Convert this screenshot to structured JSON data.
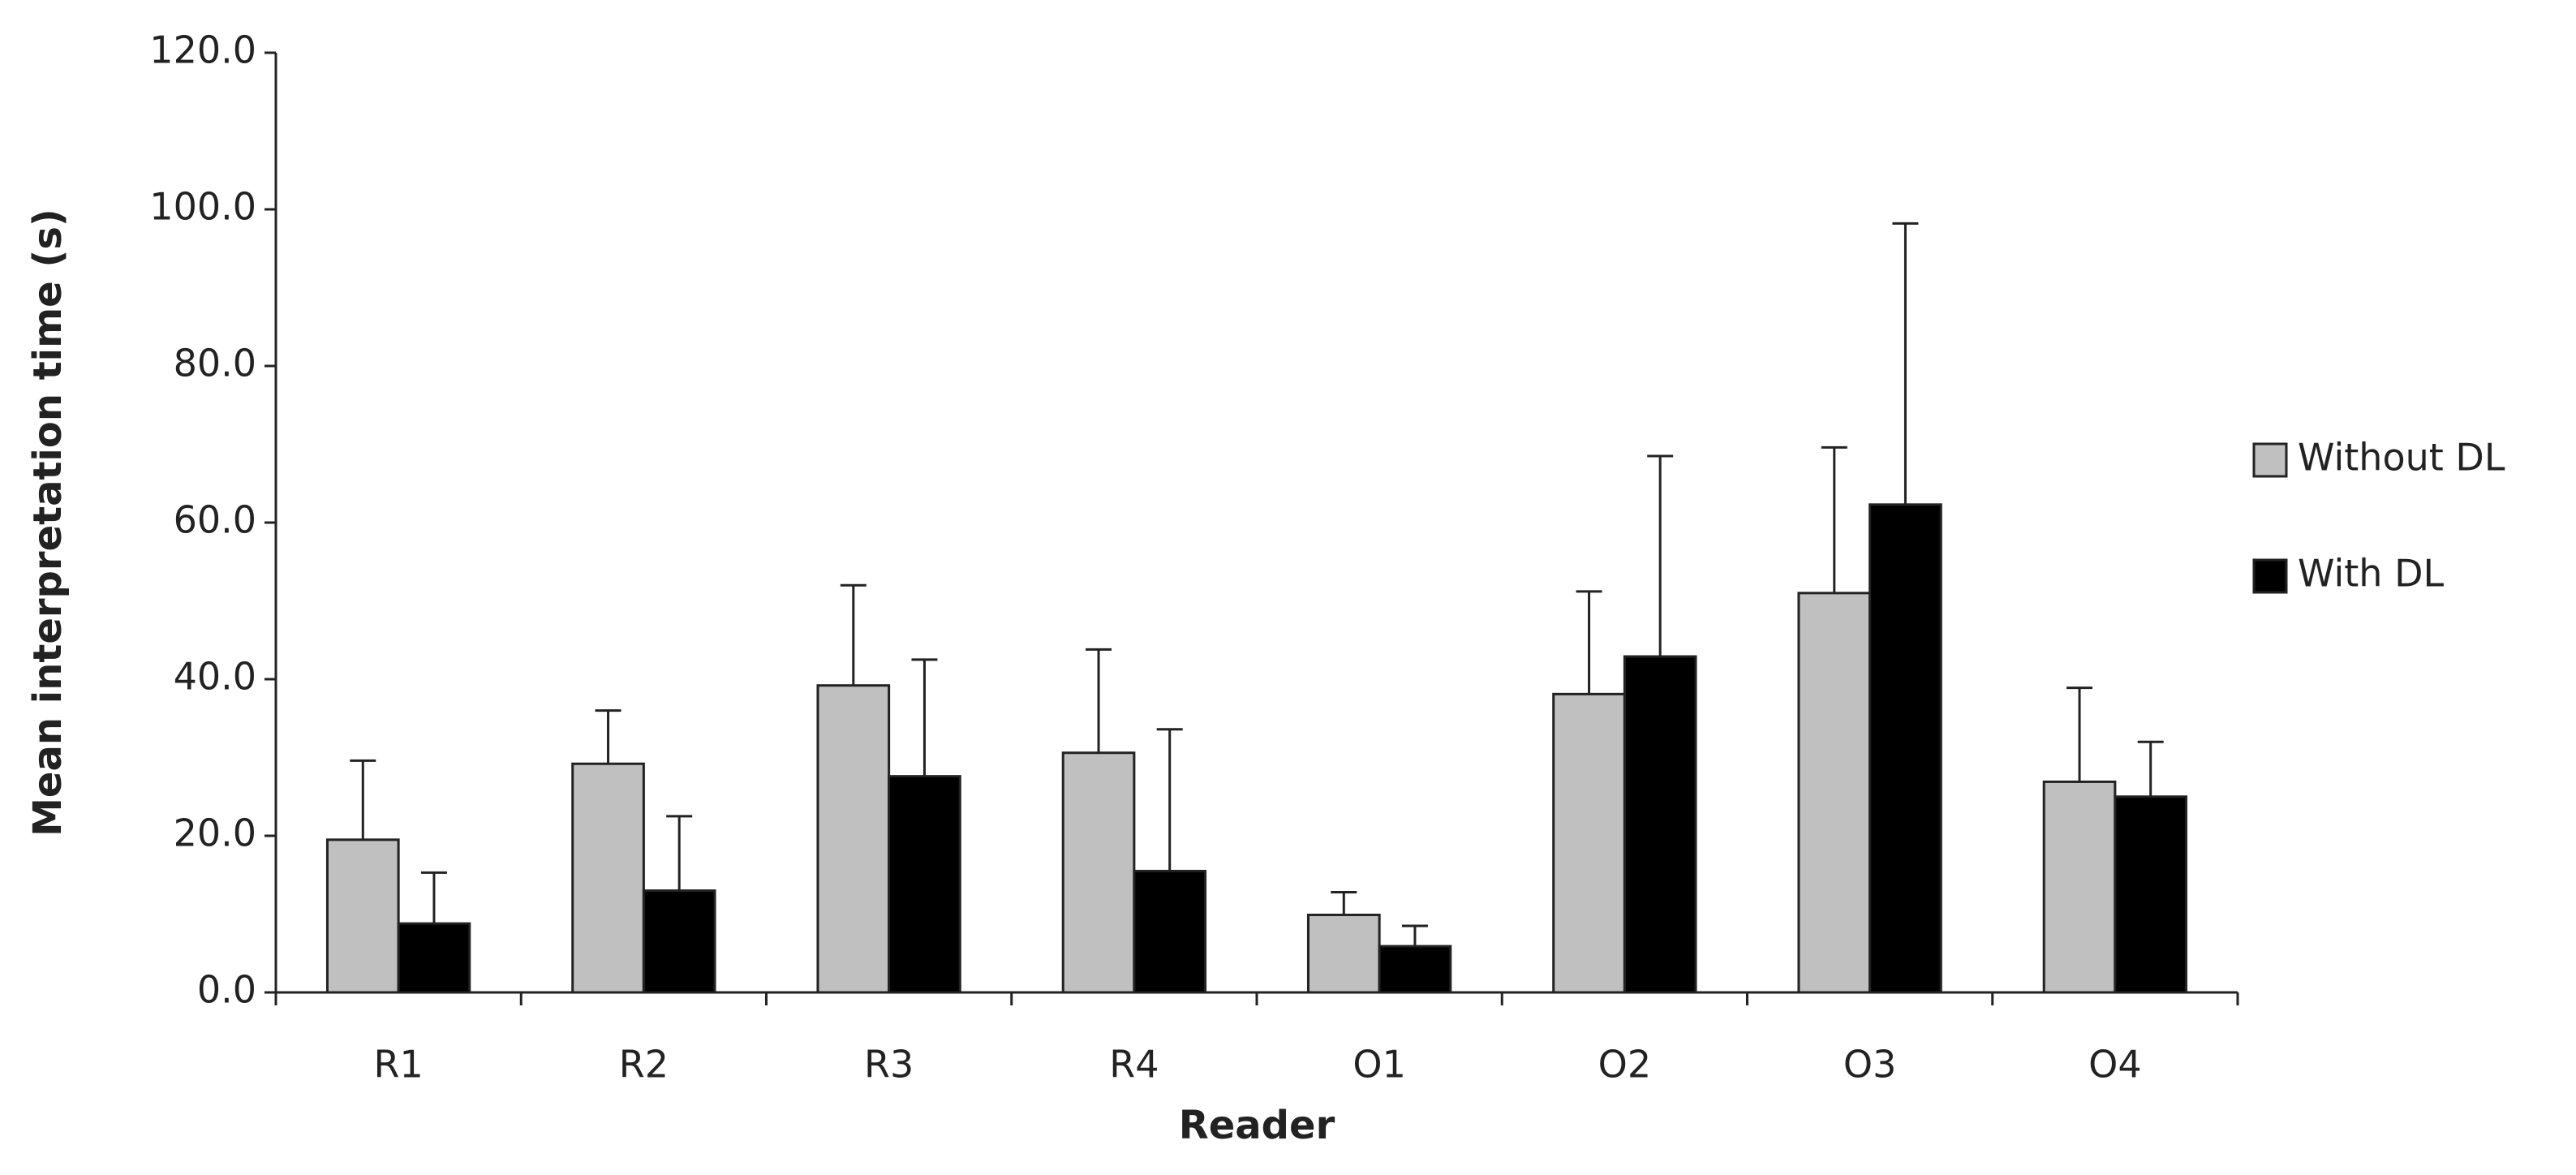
{
  "chart_data": {
    "type": "bar",
    "x_label": "Reader",
    "y_label": "Mean interpretation time (s)",
    "categories": [
      "R1",
      "R2",
      "R3",
      "R4",
      "O1",
      "O2",
      "O3",
      "O4"
    ],
    "series": [
      {
        "name": "Without DL",
        "color": "#c0c0c0",
        "values": [
          19.5,
          29.2,
          39.2,
          30.6,
          9.9,
          38.1,
          51.0,
          26.9
        ],
        "errors": [
          10.1,
          6.8,
          12.8,
          13.2,
          2.9,
          13.1,
          18.6,
          12.0
        ]
      },
      {
        "name": "With DL",
        "color": "#000000",
        "values": [
          8.8,
          13.0,
          27.6,
          15.5,
          5.9,
          42.9,
          62.3,
          25.0
        ],
        "errors": [
          6.5,
          9.5,
          14.9,
          18.1,
          2.6,
          25.6,
          35.9,
          7.0
        ]
      }
    ],
    "ylim": [
      0,
      120
    ],
    "yticks": [
      {
        "value": 0,
        "label": "0.0"
      },
      {
        "value": 20,
        "label": "20.0"
      },
      {
        "value": 40,
        "label": "40.0"
      },
      {
        "value": 60,
        "label": "60.0"
      },
      {
        "value": 80,
        "label": "80.0"
      },
      {
        "value": 100,
        "label": "100.0"
      },
      {
        "value": 120,
        "label": "120.0"
      }
    ],
    "legend": "right"
  }
}
